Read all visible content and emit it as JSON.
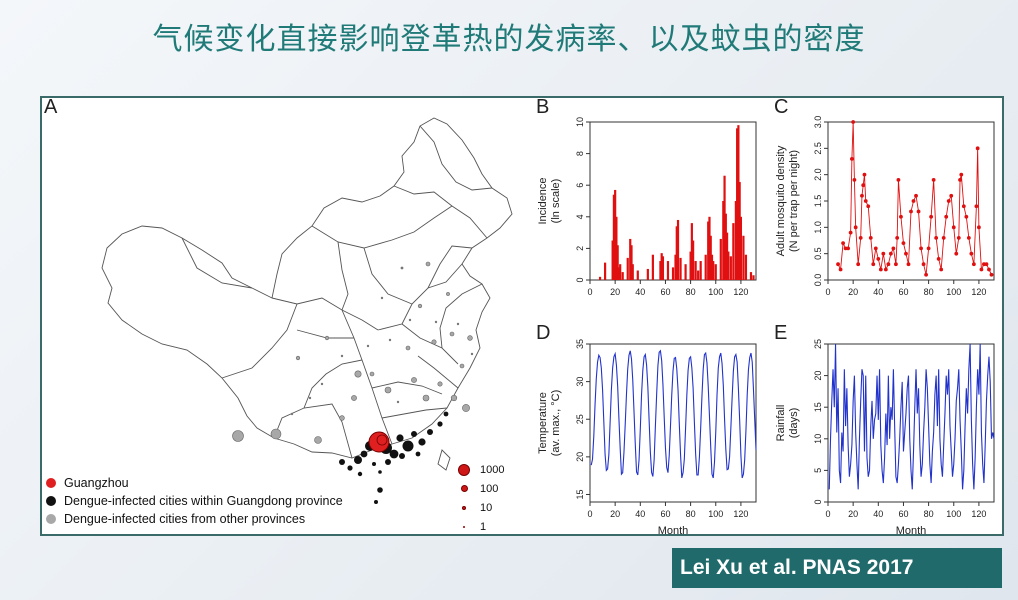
{
  "title": "气候变化直接影响登革热的发病率、以及蚊虫的密度",
  "citation": "Lei Xu et al. PNAS 2017",
  "panels": {
    "a": "A",
    "b": "B",
    "c": "C",
    "d": "D",
    "e": "E"
  },
  "map": {
    "legend": [
      {
        "label": "Guangzhou",
        "color": "#e02020"
      },
      {
        "label": "Dengue-infected cities within Guangdong province",
        "color": "#111111"
      },
      {
        "label": "Dengue-infected cities from other provinces",
        "color": "#a8a8a8"
      }
    ],
    "size_legend": [
      {
        "label": "1000",
        "color": "#d01717"
      },
      {
        "label": "100",
        "color": "#d01717"
      },
      {
        "label": "10",
        "color": "#d01717"
      },
      {
        "label": "1",
        "color": "#d01717"
      }
    ]
  },
  "chart_data": [
    {
      "id": "B",
      "type": "bar",
      "title": "",
      "xlabel": "",
      "ylabel": "Incidence\n(ln scale)",
      "xlim": [
        0,
        132
      ],
      "ylim": [
        0,
        10
      ],
      "xticks": [
        0,
        20,
        40,
        60,
        80,
        100,
        120
      ],
      "yticks": [
        0,
        2,
        4,
        6,
        8,
        10
      ],
      "color": "#e01010",
      "x": [
        8,
        12,
        18,
        19,
        20,
        21,
        22,
        23,
        24,
        26,
        30,
        32,
        33,
        34,
        38,
        46,
        50,
        56,
        57,
        58,
        62,
        66,
        68,
        69,
        70,
        72,
        76,
        80,
        81,
        82,
        84,
        86,
        88,
        92,
        94,
        95,
        96,
        97,
        98,
        100,
        104,
        106,
        107,
        108,
        109,
        110,
        112,
        114,
        116,
        117,
        118,
        119,
        120,
        122,
        124,
        128,
        130
      ],
      "values": [
        0.2,
        1.1,
        2.5,
        5.4,
        5.7,
        4.0,
        2.2,
        0.8,
        1.0,
        0.5,
        1.4,
        2.6,
        2.2,
        1.0,
        0.6,
        0.7,
        1.6,
        1.2,
        1.7,
        1.5,
        1.2,
        0.8,
        1.6,
        3.4,
        3.8,
        1.4,
        1.0,
        1.8,
        3.6,
        2.5,
        1.2,
        0.6,
        1.2,
        1.6,
        3.7,
        4.0,
        2.8,
        1.6,
        1.2,
        1.0,
        2.6,
        5.0,
        6.6,
        4.2,
        3.0,
        1.8,
        1.5,
        3.6,
        5.0,
        9.6,
        9.8,
        6.2,
        4.0,
        2.8,
        1.6,
        0.5,
        0.3
      ]
    },
    {
      "id": "C",
      "type": "line",
      "title": "",
      "xlabel": "",
      "ylabel": "Adult mosquito density\n(N per trap per night)",
      "xlim": [
        0,
        132
      ],
      "ylim": [
        0,
        3.0
      ],
      "xticks": [
        0,
        20,
        40,
        60,
        80,
        100,
        120
      ],
      "yticks": [
        0.0,
        0.5,
        1.0,
        1.5,
        2.0,
        2.5,
        3.0
      ],
      "color": "#e01010",
      "x": [
        8,
        10,
        12,
        14,
        16,
        18,
        19,
        20,
        21,
        22,
        24,
        26,
        27,
        28,
        29,
        30,
        32,
        34,
        36,
        38,
        40,
        42,
        44,
        46,
        48,
        50,
        52,
        54,
        55,
        56,
        58,
        60,
        62,
        64,
        66,
        68,
        70,
        72,
        74,
        76,
        78,
        80,
        82,
        84,
        86,
        88,
        90,
        92,
        94,
        96,
        98,
        100,
        102,
        104,
        105,
        106,
        108,
        110,
        112,
        114,
        116,
        118,
        119,
        120,
        122,
        124,
        126,
        128,
        130
      ],
      "y": [
        0.3,
        0.2,
        0.7,
        0.6,
        0.6,
        0.9,
        2.3,
        3.0,
        1.9,
        1.0,
        0.3,
        0.8,
        1.6,
        1.8,
        2.0,
        1.5,
        1.4,
        0.8,
        0.3,
        0.6,
        0.4,
        0.2,
        0.5,
        0.2,
        0.3,
        0.5,
        0.6,
        0.3,
        0.8,
        1.9,
        1.2,
        0.7,
        0.5,
        0.3,
        1.3,
        1.5,
        1.6,
        1.3,
        0.6,
        0.3,
        0.1,
        0.6,
        1.2,
        1.9,
        0.8,
        0.4,
        0.2,
        0.8,
        1.2,
        1.5,
        1.6,
        1.0,
        0.5,
        0.8,
        1.9,
        2.0,
        1.4,
        1.2,
        0.8,
        0.5,
        0.3,
        1.4,
        2.5,
        1.0,
        0.2,
        0.3,
        0.3,
        0.2,
        0.1
      ]
    },
    {
      "id": "D",
      "type": "line",
      "title": "",
      "xlabel": "Month",
      "ylabel": "Temperature\n(av. max., °C)",
      "xlim": [
        0,
        132
      ],
      "ylim": [
        14,
        35
      ],
      "xticks": [
        0,
        20,
        40,
        60,
        80,
        100,
        120
      ],
      "yticks": [
        15,
        20,
        25,
        30,
        35
      ],
      "color": "#2233cc",
      "x": [
        1,
        2,
        3,
        4,
        5,
        6,
        7,
        8,
        9,
        10,
        11,
        12,
        13,
        14,
        15,
        16,
        17,
        18,
        19,
        20,
        21,
        22,
        23,
        24,
        25,
        26,
        27,
        28,
        29,
        30,
        31,
        32,
        33,
        34,
        35,
        36,
        37,
        38,
        39,
        40,
        41,
        42,
        43,
        44,
        45,
        46,
        47,
        48,
        49,
        50,
        51,
        52,
        53,
        54,
        55,
        56,
        57,
        58,
        59,
        60,
        61,
        62,
        63,
        64,
        65,
        66,
        67,
        68,
        69,
        70,
        71,
        72,
        73,
        74,
        75,
        76,
        77,
        78,
        79,
        80,
        81,
        82,
        83,
        84,
        85,
        86,
        87,
        88,
        89,
        90,
        91,
        92,
        93,
        94,
        95,
        96,
        97,
        98,
        99,
        100,
        101,
        102,
        103,
        104,
        105,
        106,
        107,
        108,
        109,
        110,
        111,
        112,
        113,
        114,
        115,
        116,
        117,
        118,
        119,
        120,
        121,
        122,
        123,
        124,
        125,
        126,
        127,
        128,
        129,
        130,
        131,
        132
      ],
      "y": [
        18.9,
        19.7,
        22.7,
        26.9,
        30.4,
        32.6,
        33.5,
        33.2,
        31.8,
        28.9,
        24.6,
        20.3,
        18.2,
        18.4,
        20.3,
        24.6,
        28.9,
        31.8,
        33.3,
        33.7,
        32.2,
        29.4,
        25.1,
        21.1,
        17.7,
        17.9,
        20.6,
        24.3,
        28.3,
        31.7,
        33.5,
        34.1,
        33.0,
        30.2,
        26.0,
        21.7,
        18.0,
        17.6,
        19.6,
        23.7,
        28.3,
        31.5,
        33.3,
        33.6,
        32.2,
        29.3,
        24.9,
        20.6,
        17.9,
        17.4,
        19.6,
        24.1,
        28.3,
        32.1,
        33.9,
        34.1,
        32.8,
        29.6,
        25.3,
        21.2,
        18.6,
        17.9,
        20.2,
        24.1,
        28.2,
        31.4,
        33.1,
        33.2,
        31.7,
        28.9,
        24.4,
        20.3,
        17.2,
        17.9,
        19.7,
        23.8,
        28.2,
        31.5,
        33.1,
        33.3,
        31.8,
        29.1,
        24.6,
        20.4,
        17.6,
        17.6,
        20.0,
        23.8,
        28.0,
        31.6,
        33.6,
        33.8,
        32.5,
        29.4,
        25.4,
        21.3,
        17.7,
        17.2,
        19.3,
        23.3,
        28.2,
        31.8,
        33.3,
        33.8,
        32.4,
        29.5,
        25.0,
        21.0,
        18.3,
        18.4,
        20.0,
        23.8,
        27.8,
        31.4,
        33.3,
        33.6,
        32.6,
        29.1,
        24.9,
        20.2,
        17.2,
        17.7,
        19.6,
        23.5,
        28.2,
        31.6,
        33.2,
        33.8,
        32.6,
        28.9,
        24.9,
        20.9
      ]
    },
    {
      "id": "E",
      "type": "line",
      "title": "",
      "xlabel": "Month",
      "ylabel": "Rainfall\n(days)",
      "xlim": [
        0,
        132
      ],
      "ylim": [
        0,
        25
      ],
      "xticks": [
        0,
        20,
        40,
        60,
        80,
        100,
        120
      ],
      "yticks": [
        0,
        5,
        10,
        15,
        20,
        25
      ],
      "color": "#2233cc",
      "x": [
        1,
        2,
        3,
        4,
        5,
        6,
        7,
        8,
        9,
        10,
        11,
        12,
        13,
        14,
        15,
        16,
        17,
        18,
        19,
        20,
        21,
        22,
        23,
        24,
        25,
        26,
        27,
        28,
        29,
        30,
        31,
        32,
        33,
        34,
        35,
        36,
        37,
        38,
        39,
        40,
        41,
        42,
        43,
        44,
        45,
        46,
        47,
        48,
        49,
        50,
        51,
        52,
        53,
        54,
        55,
        56,
        57,
        58,
        59,
        60,
        61,
        62,
        63,
        64,
        65,
        66,
        67,
        68,
        69,
        70,
        71,
        72,
        73,
        74,
        75,
        76,
        77,
        78,
        79,
        80,
        81,
        82,
        83,
        84,
        85,
        86,
        87,
        88,
        89,
        90,
        91,
        92,
        93,
        94,
        95,
        96,
        97,
        98,
        99,
        100,
        101,
        102,
        103,
        104,
        105,
        106,
        107,
        108,
        109,
        110,
        111,
        112,
        113,
        114,
        115,
        116,
        117,
        118,
        119,
        120,
        121,
        122,
        123,
        124,
        125,
        126,
        127,
        128,
        129,
        130,
        131,
        132
      ],
      "y": [
        2,
        10,
        16,
        21,
        15,
        25,
        11,
        18,
        5,
        3,
        11,
        8,
        21,
        12,
        18,
        9,
        4,
        6,
        9,
        16,
        20,
        11,
        6,
        2,
        10,
        16,
        21,
        20,
        8,
        20,
        7,
        4,
        5,
        12,
        16,
        10,
        13,
        14,
        20,
        13,
        21,
        9,
        5,
        3,
        7,
        14,
        9,
        20,
        10,
        15,
        13,
        21,
        12,
        4,
        3,
        6,
        10,
        15,
        19,
        8,
        11,
        14,
        18,
        20,
        10,
        5,
        2,
        8,
        15,
        21,
        14,
        18,
        9,
        4,
        6,
        11,
        15,
        21,
        18,
        12,
        6,
        3,
        8,
        11,
        17,
        20,
        12,
        21,
        10,
        6,
        4,
        9,
        14,
        20,
        17,
        21,
        12,
        8,
        4,
        6,
        10,
        16,
        18,
        21,
        13,
        8,
        2,
        5,
        12,
        18,
        14,
        21,
        25,
        13,
        6,
        2,
        7,
        15,
        21,
        17,
        25,
        11,
        6,
        3,
        9,
        16,
        20,
        23,
        19,
        10,
        11,
        10
      ]
    }
  ]
}
